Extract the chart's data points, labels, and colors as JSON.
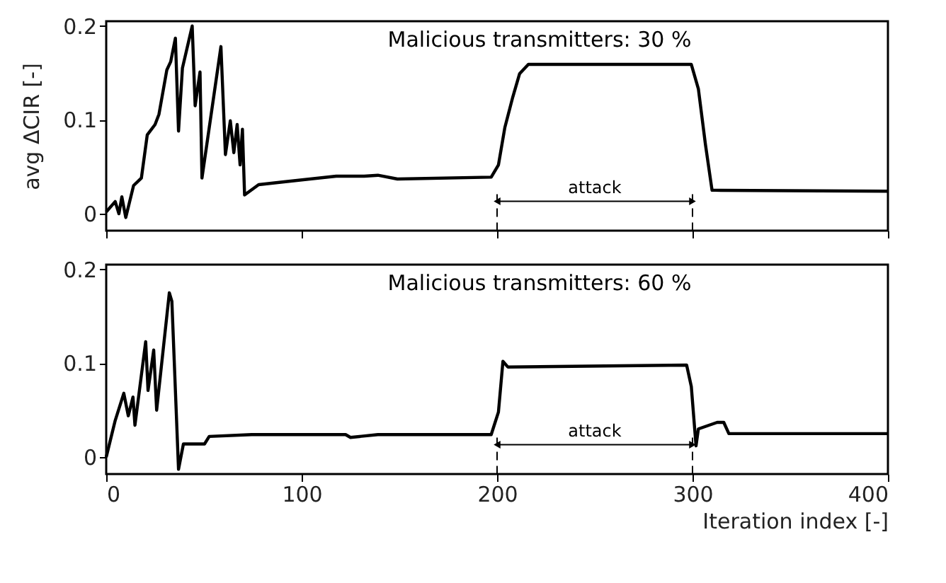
{
  "chart_data": [
    {
      "type": "line",
      "annotations": [
        "Malicious transmitters: 30 %",
        "attack"
      ],
      "ylabel": "avg ΔCIR [-]",
      "xlim": [
        0,
        400
      ],
      "xticks": [
        0,
        100,
        200,
        300,
        400
      ],
      "ylim": [
        -0.018,
        0.205
      ],
      "yticks": [
        0,
        0.1,
        0.2
      ],
      "grid": false,
      "tick_labels": "y",
      "line_style": "solid",
      "marker": "none",
      "ref_lines": [
        {
          "axis": "x",
          "value": 200,
          "line_style": "dashed"
        },
        {
          "axis": "x",
          "value": 300,
          "line_style": "dashed"
        }
      ],
      "series": [
        {
          "color": "#000000",
          "x": [
            0,
            4.6,
            6.5,
            8,
            10,
            14,
            18,
            21,
            25,
            27,
            31,
            33,
            35.4,
            37,
            39,
            44,
            45.5,
            48,
            49,
            58.7,
            61,
            63.5,
            65.3,
            67,
            68.5,
            69.7,
            70.8,
            78,
            91,
            117.7,
            132,
            139,
            149,
            197,
            200.7,
            204,
            208,
            211.5,
            216,
            299.4,
            303,
            306.6,
            310,
            311.5,
            400
          ],
          "values": [
            0.002,
            0.013,
            0,
            0.018,
            -0.004,
            0.03,
            0.038,
            0.084,
            0.095,
            0.106,
            0.153,
            0.162,
            0.187,
            0.088,
            0.155,
            0.2,
            0.115,
            0.151,
            0.038,
            0.178,
            0.063,
            0.099,
            0.065,
            0.095,
            0.052,
            0.09,
            0.02,
            0.031,
            0.034,
            0.04,
            0.04,
            0.041,
            0.037,
            0.039,
            0.052,
            0.092,
            0.124,
            0.149,
            0.159,
            0.159,
            0.133,
            0.074,
            0.025,
            0.025,
            0.024
          ]
        }
      ]
    },
    {
      "type": "line",
      "annotations": [
        "Malicious transmitters: 60 %",
        "attack"
      ],
      "xlabel": "Iteration index [-]",
      "xlim": [
        0,
        400
      ],
      "xticks": [
        0,
        100,
        200,
        300,
        400
      ],
      "ylim": [
        -0.018,
        0.205
      ],
      "yticks": [
        0,
        0.1,
        0.2
      ],
      "grid": false,
      "line_style": "solid",
      "marker": "none",
      "ref_lines": [
        {
          "axis": "x",
          "value": 200,
          "line_style": "dashed"
        },
        {
          "axis": "x",
          "value": 300,
          "line_style": "dashed"
        }
      ],
      "series": [
        {
          "color": "#000000",
          "x": [
            0,
            4.6,
            9,
            11.3,
            13.7,
            14.7,
            20.2,
            21.4,
            24.3,
            25.8,
            32.3,
            33.6,
            37,
            39.5,
            50.3,
            52.7,
            74.4,
            122.5,
            125,
            139,
            197,
            200.7,
            203,
            205.5,
            297,
            299.4,
            301.8,
            303,
            312.6,
            316,
            318.6,
            400
          ],
          "values": [
            0,
            0.039,
            0.068,
            0.044,
            0.064,
            0.034,
            0.123,
            0.071,
            0.114,
            0.05,
            0.175,
            0.166,
            -0.013,
            0.014,
            0.014,
            0.022,
            0.024,
            0.024,
            0.021,
            0.024,
            0.024,
            0.048,
            0.102,
            0.096,
            0.098,
            0.075,
            0.012,
            0.03,
            0.037,
            0.037,
            0.025,
            0.025
          ]
        }
      ]
    }
  ]
}
